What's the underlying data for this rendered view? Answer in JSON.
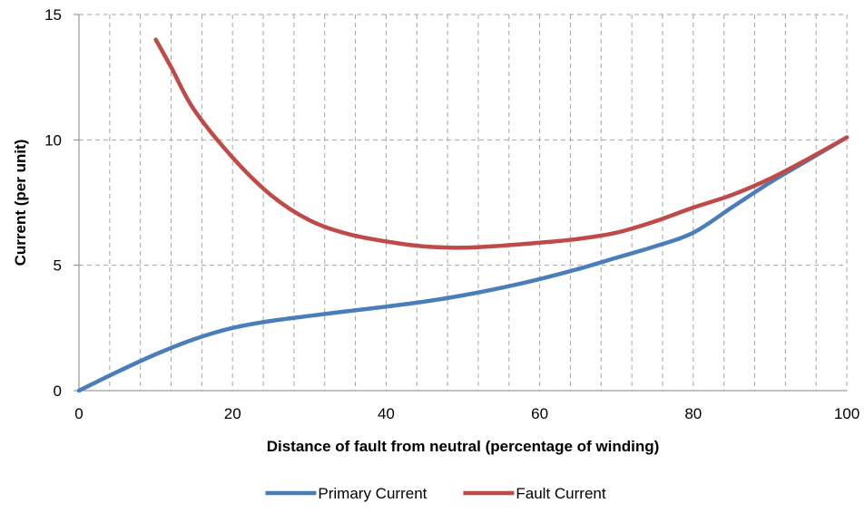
{
  "chart_data": {
    "type": "line",
    "xlabel": "Distance of fault from neutral (percentage of winding)",
    "ylabel": "Current (per unit)",
    "xlim": [
      0,
      100
    ],
    "ylim": [
      0,
      15
    ],
    "x_ticks": [
      0,
      20,
      40,
      60,
      80,
      100
    ],
    "y_ticks": [
      0,
      5,
      10,
      15
    ],
    "x_tick_labels": [
      "0",
      "20",
      "40",
      "60",
      "80",
      "100"
    ],
    "y_tick_labels": [
      "0",
      "5",
      "10",
      "15"
    ],
    "x_minor_gridlines": [
      4,
      8,
      12,
      16,
      24,
      28,
      32,
      36,
      44,
      48,
      52,
      56,
      64,
      68,
      72,
      76,
      84,
      88,
      92,
      96
    ],
    "grid": true,
    "legend_position": "bottom",
    "series": [
      {
        "name": "Primary Current",
        "color": "#4A7EBB",
        "x": [
          0,
          5,
          10,
          15,
          20,
          25,
          30,
          35,
          40,
          45,
          50,
          55,
          60,
          65,
          70,
          75,
          80,
          85,
          90,
          95,
          100
        ],
        "y": [
          0,
          0.75,
          1.45,
          2.05,
          2.5,
          2.78,
          2.98,
          3.17,
          3.35,
          3.55,
          3.8,
          4.1,
          4.45,
          4.85,
          5.3,
          5.75,
          6.3,
          7.3,
          8.3,
          9.2,
          10.1
        ]
      },
      {
        "name": "Fault Current",
        "color": "#BE4B48",
        "x": [
          10,
          12,
          15,
          20,
          25,
          30,
          35,
          40,
          45,
          50,
          55,
          60,
          65,
          70,
          75,
          80,
          85,
          90,
          95,
          100
        ],
        "y": [
          14,
          12.9,
          11.2,
          9.3,
          7.8,
          6.8,
          6.25,
          5.95,
          5.75,
          5.7,
          5.78,
          5.9,
          6.05,
          6.3,
          6.75,
          7.3,
          7.8,
          8.45,
          9.25,
          10.1
        ]
      }
    ]
  }
}
